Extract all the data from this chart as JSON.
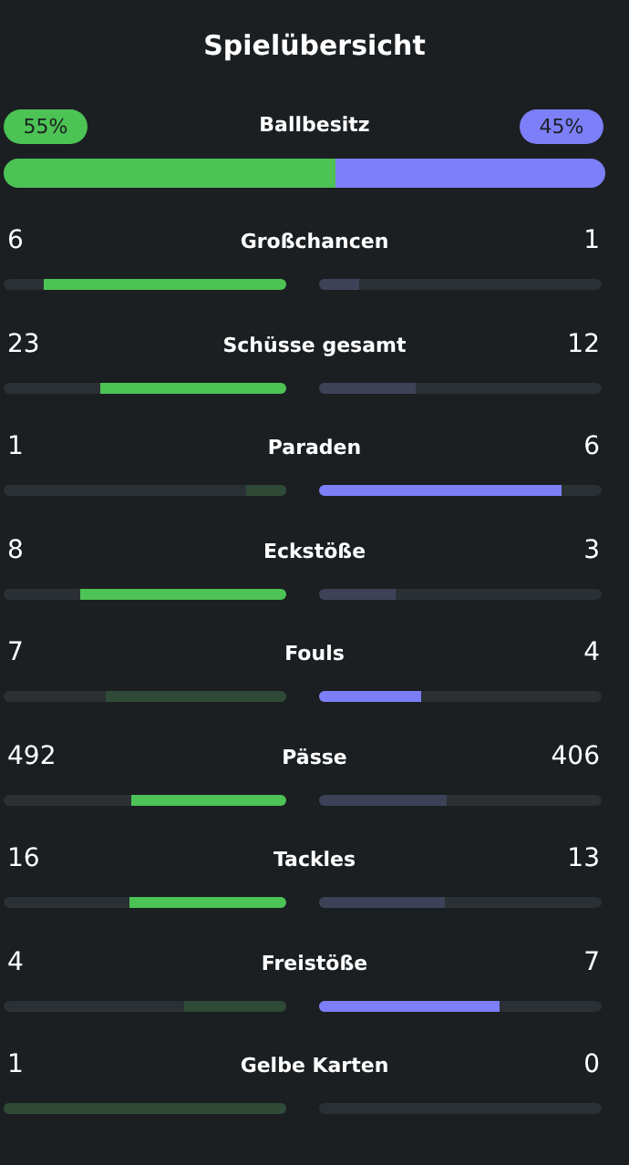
{
  "chart_data": {
    "type": "other",
    "title": "Spielübersicht",
    "categories": [
      "Ballbesitz",
      "Großchancen",
      "Schüsse gesamt",
      "Paraden",
      "Eckstöße",
      "Fouls",
      "Pässe",
      "Tackles",
      "Freistöße",
      "Gelbe Karten"
    ],
    "series": [
      {
        "values": [
          55,
          6,
          23,
          1,
          8,
          7,
          492,
          16,
          4,
          1
        ],
        "value_labels": [
          "55%",
          "6",
          "23",
          "1",
          "8",
          "7",
          "492",
          "16",
          "4",
          "1"
        ],
        "colors": [
          "#4cc354",
          "#4cc354",
          "#4cc354",
          "#2f4a37",
          "#4cc354",
          "#2f4a37",
          "#4cc354",
          "#4cc354",
          "#2f4a37",
          "#2f4a37"
        ]
      },
      {
        "values": [
          45,
          1,
          12,
          6,
          3,
          4,
          406,
          13,
          7,
          0
        ],
        "value_labels": [
          "45%",
          "1",
          "12",
          "6",
          "3",
          "4",
          "406",
          "13",
          "7",
          "0"
        ],
        "colors": [
          "#7c7ff7",
          "#3d4259",
          "#3d4259",
          "#7c7ff7",
          "#3d4259",
          "#7c7ff7",
          "#3d4259",
          "#3d4259",
          "#7c7ff7",
          "#3d4259"
        ]
      }
    ]
  }
}
